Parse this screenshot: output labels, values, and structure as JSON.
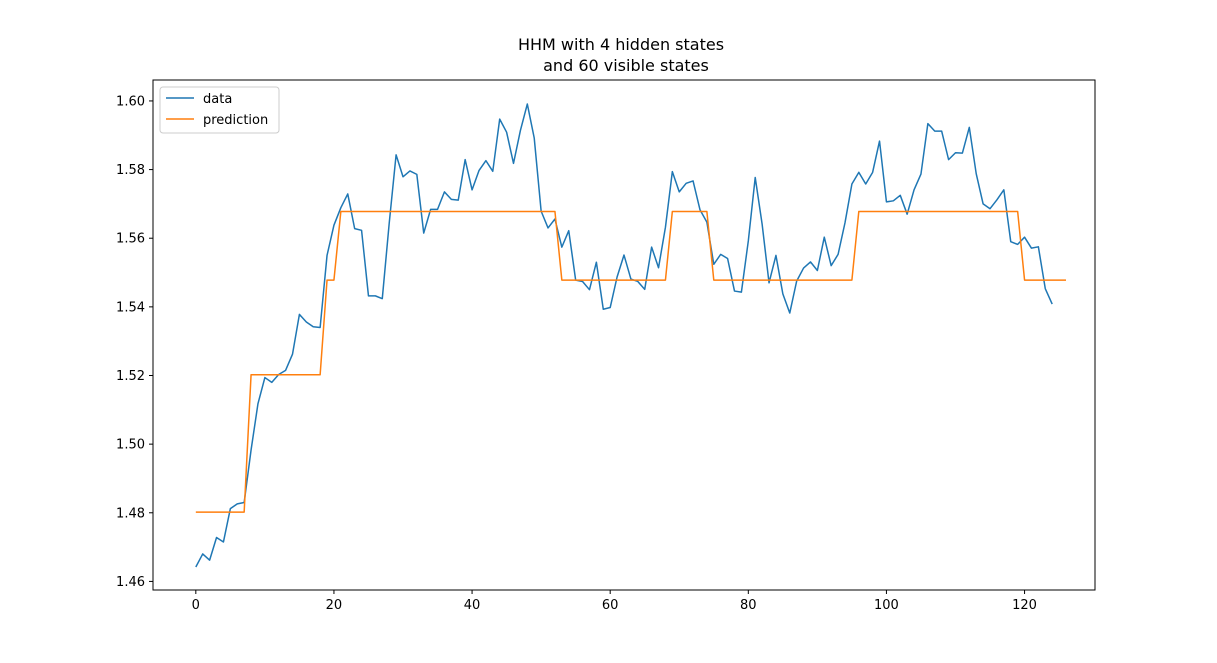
{
  "chart_data": {
    "type": "line",
    "title_line1": "HHM with 4 hidden states",
    "title_line2": "and 60 visible states",
    "xlabel": "",
    "ylabel": "",
    "xlim": [
      -6.2,
      130.2
    ],
    "ylim": [
      1.4575,
      1.6061
    ],
    "xticks": [
      0,
      20,
      40,
      60,
      80,
      100,
      120
    ],
    "yticks": [
      1.46,
      1.48,
      1.5,
      1.52,
      1.54,
      1.56,
      1.58,
      1.6
    ],
    "ytick_labels": [
      "1.46",
      "1.48",
      "1.50",
      "1.52",
      "1.54",
      "1.56",
      "1.58",
      "1.60"
    ],
    "grid": false,
    "legend_position": "upper left",
    "series": [
      {
        "name": "data",
        "color": "#1f77b4",
        "values": [
          1.4642,
          1.468,
          1.4662,
          1.4728,
          1.4715,
          1.4812,
          1.4826,
          1.483,
          1.4983,
          1.5118,
          1.5194,
          1.518,
          1.5203,
          1.5215,
          1.5262,
          1.5378,
          1.5356,
          1.5342,
          1.534,
          1.555,
          1.5638,
          1.5689,
          1.5729,
          1.5628,
          1.5623,
          1.5432,
          1.5432,
          1.5424,
          1.5643,
          1.5843,
          1.5779,
          1.5796,
          1.5786,
          1.5615,
          1.5684,
          1.5684,
          1.5735,
          1.5713,
          1.5711,
          1.5829,
          1.5741,
          1.5797,
          1.5826,
          1.5795,
          1.5947,
          1.5909,
          1.5818,
          1.5914,
          1.5991,
          1.5892,
          1.5679,
          1.563,
          1.5656,
          1.5574,
          1.5622,
          1.5478,
          1.5474,
          1.545,
          1.553,
          1.5393,
          1.5398,
          1.5487,
          1.5551,
          1.5481,
          1.5474,
          1.5451,
          1.5574,
          1.5514,
          1.5632,
          1.5794,
          1.5735,
          1.576,
          1.5767,
          1.5683,
          1.5647,
          1.5524,
          1.5553,
          1.5541,
          1.5446,
          1.5443,
          1.5592,
          1.5777,
          1.5641,
          1.547,
          1.555,
          1.5438,
          1.5382,
          1.5475,
          1.5513,
          1.5531,
          1.5506,
          1.5603,
          1.552,
          1.5553,
          1.5645,
          1.5758,
          1.5792,
          1.5758,
          1.5792,
          1.5883,
          1.5706,
          1.5709,
          1.5725,
          1.567,
          1.5741,
          1.5787,
          1.5934,
          1.5912,
          1.5912,
          1.5829,
          1.5849,
          1.5848,
          1.5923,
          1.5788,
          1.57,
          1.5686,
          1.5712,
          1.5741,
          1.559,
          1.5582,
          1.5603,
          1.5571,
          1.5575,
          1.5453,
          1.5408
        ]
      },
      {
        "name": "prediction",
        "color": "#ff7f0e",
        "values": [
          1.4802,
          1.4802,
          1.4802,
          1.4802,
          1.4802,
          1.4802,
          1.4802,
          1.4802,
          1.5202,
          1.5202,
          1.5202,
          1.5202,
          1.5202,
          1.5202,
          1.5202,
          1.5202,
          1.5202,
          1.5202,
          1.5202,
          1.5478,
          1.5478,
          1.5678,
          1.5678,
          1.5678,
          1.5678,
          1.5678,
          1.5678,
          1.5678,
          1.5678,
          1.5678,
          1.5678,
          1.5678,
          1.5678,
          1.5678,
          1.5678,
          1.5678,
          1.5678,
          1.5678,
          1.5678,
          1.5678,
          1.5678,
          1.5678,
          1.5678,
          1.5678,
          1.5678,
          1.5678,
          1.5678,
          1.5678,
          1.5678,
          1.5678,
          1.5678,
          1.5678,
          1.5678,
          1.5478,
          1.5478,
          1.5478,
          1.5478,
          1.5478,
          1.5478,
          1.5478,
          1.5478,
          1.5478,
          1.5478,
          1.5478,
          1.5478,
          1.5478,
          1.5478,
          1.5478,
          1.5478,
          1.5678,
          1.5678,
          1.5678,
          1.5678,
          1.5678,
          1.5678,
          1.5478,
          1.5478,
          1.5478,
          1.5478,
          1.5478,
          1.5478,
          1.5478,
          1.5478,
          1.5478,
          1.5478,
          1.5478,
          1.5478,
          1.5478,
          1.5478,
          1.5478,
          1.5478,
          1.5478,
          1.5478,
          1.5478,
          1.5478,
          1.5478,
          1.5678,
          1.5678,
          1.5678,
          1.5678,
          1.5678,
          1.5678,
          1.5678,
          1.5678,
          1.5678,
          1.5678,
          1.5678,
          1.5678,
          1.5678,
          1.5678,
          1.5678,
          1.5678,
          1.5678,
          1.5678,
          1.5678,
          1.5678,
          1.5678,
          1.5678,
          1.5678,
          1.5678,
          1.5478,
          1.5478,
          1.5478,
          1.5478,
          1.5478,
          1.5478,
          1.5478
        ]
      }
    ]
  }
}
